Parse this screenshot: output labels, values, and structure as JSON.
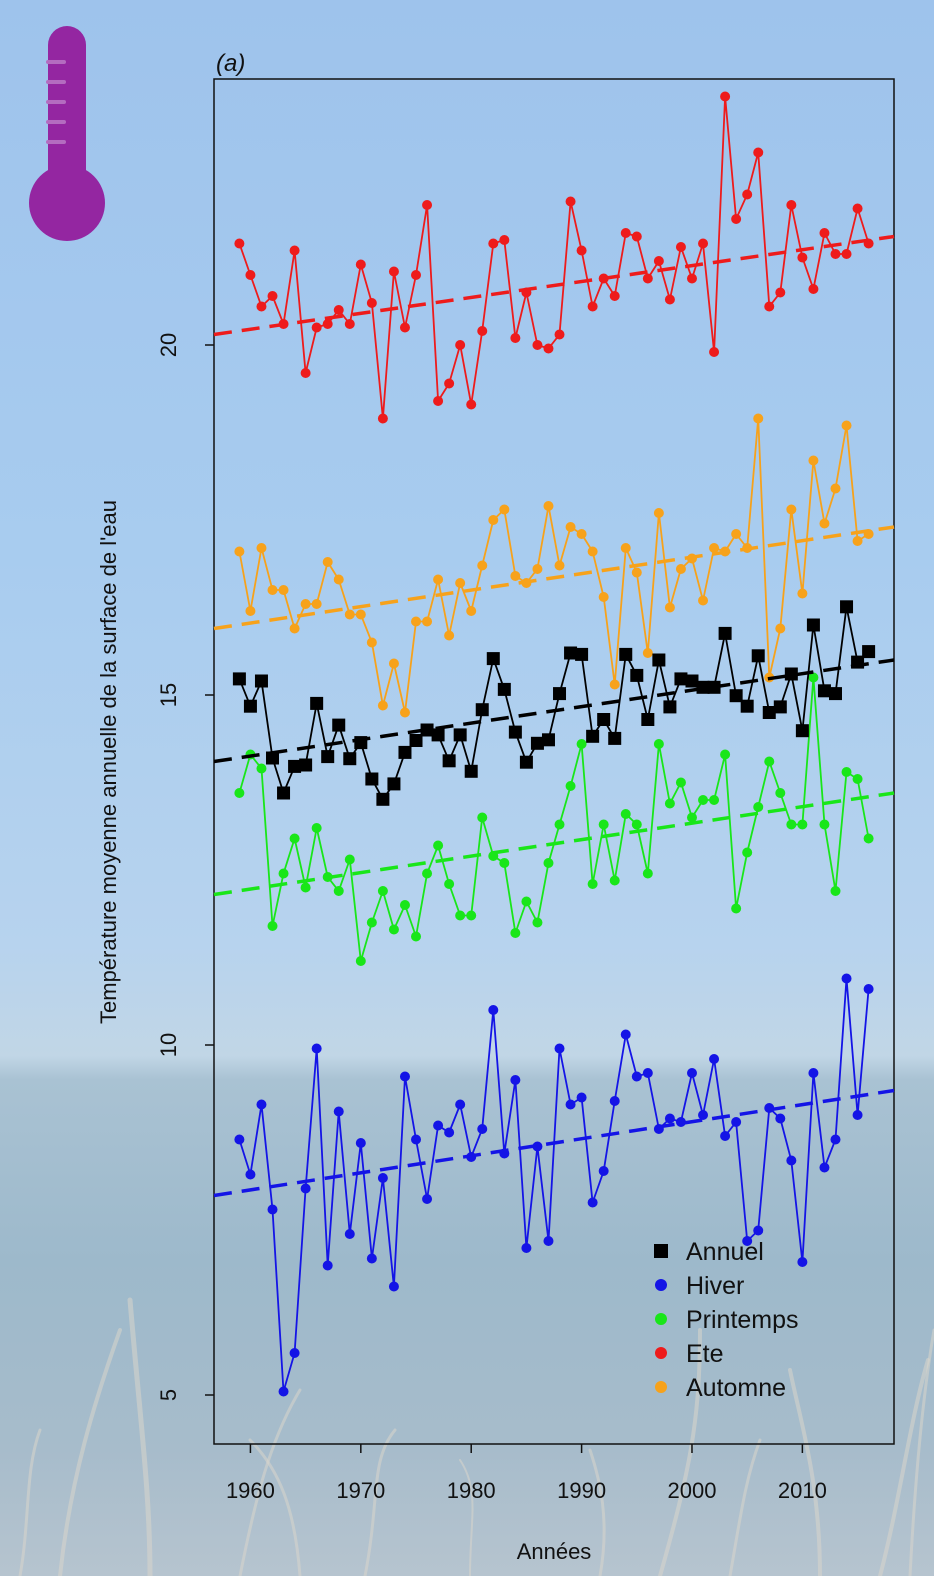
{
  "icon": "thermometer-icon",
  "icon_color": "#9426a1",
  "chart_data": {
    "type": "line",
    "panel_label": "(a)",
    "xlabel": "Années",
    "ylabel": "Température moyenne annuelle de la surface de l'eau",
    "xlim": [
      1956.7,
      2018.3
    ],
    "ylim": [
      4.3,
      23.8
    ],
    "xticks": [
      1960,
      1970,
      1980,
      1990,
      2000,
      2010
    ],
    "yticks": [
      5,
      10,
      15,
      20
    ],
    "legend_position": "bottom-right",
    "x": [
      1959,
      1960,
      1961,
      1962,
      1963,
      1964,
      1965,
      1966,
      1967,
      1968,
      1969,
      1970,
      1971,
      1972,
      1973,
      1974,
      1975,
      1976,
      1977,
      1978,
      1979,
      1980,
      1981,
      1982,
      1983,
      1984,
      1985,
      1986,
      1987,
      1988,
      1989,
      1990,
      1991,
      1992,
      1993,
      1994,
      1995,
      1996,
      1997,
      1998,
      1999,
      2000,
      2001,
      2002,
      2003,
      2004,
      2005,
      2006,
      2007,
      2008,
      2009,
      2010,
      2011,
      2012,
      2013,
      2014,
      2015,
      2016
    ],
    "series": [
      {
        "name": "Annuel",
        "color": "#000000",
        "marker": "square",
        "values": [
          15.23,
          14.84,
          15.2,
          14.1,
          13.6,
          13.98,
          14.0,
          14.88,
          14.12,
          14.57,
          14.09,
          14.32,
          13.8,
          13.51,
          13.73,
          14.18,
          14.35,
          14.5,
          14.43,
          14.06,
          14.43,
          13.91,
          14.79,
          15.52,
          15.08,
          14.47,
          14.04,
          14.31,
          14.36,
          15.02,
          15.6,
          15.58,
          14.41,
          14.65,
          14.38,
          15.58,
          15.28,
          14.65,
          15.5,
          14.83,
          15.23,
          15.2,
          15.11,
          15.11,
          15.88,
          14.99,
          14.84,
          15.56,
          14.75,
          14.83,
          15.3,
          14.49,
          16.0,
          15.06,
          15.02,
          16.26,
          15.47,
          15.62
        ],
        "trend": [
          14.05,
          15.5
        ]
      },
      {
        "name": "Hiver",
        "color": "#1414e6",
        "marker": "circle",
        "values": [
          8.65,
          8.15,
          9.15,
          7.65,
          5.05,
          5.6,
          7.95,
          9.95,
          6.85,
          9.05,
          7.3,
          8.6,
          6.95,
          8.1,
          6.55,
          9.55,
          8.65,
          7.8,
          8.85,
          8.75,
          9.15,
          8.4,
          8.8,
          10.5,
          8.45,
          9.5,
          7.1,
          8.55,
          7.2,
          9.95,
          9.15,
          9.25,
          7.75,
          8.2,
          9.2,
          10.15,
          9.55,
          9.6,
          8.8,
          8.95,
          8.9,
          9.6,
          9.0,
          9.8,
          8.7,
          8.9,
          7.2,
          7.35,
          9.1,
          8.95,
          8.35,
          6.9,
          9.6,
          8.25,
          8.65,
          10.95,
          9.0,
          10.8
        ],
        "trend": [
          7.85,
          9.35
        ]
      },
      {
        "name": "Printemps",
        "color": "#19e619",
        "marker": "circle",
        "values": [
          13.6,
          14.15,
          13.95,
          11.7,
          12.45,
          12.95,
          12.25,
          13.1,
          12.4,
          12.2,
          12.65,
          11.2,
          11.75,
          12.2,
          11.65,
          12.0,
          11.55,
          12.45,
          12.85,
          12.3,
          11.85,
          11.85,
          13.25,
          12.7,
          12.6,
          11.6,
          12.05,
          11.75,
          12.6,
          13.15,
          13.7,
          14.3,
          12.3,
          13.15,
          12.35,
          13.3,
          13.15,
          12.45,
          14.3,
          13.45,
          13.75,
          13.25,
          13.5,
          13.5,
          14.15,
          11.95,
          12.75,
          13.4,
          14.05,
          13.6,
          13.15,
          13.15,
          15.25,
          13.15,
          12.2,
          13.9,
          13.8,
          12.95
        ],
        "trend": [
          12.15,
          13.6
        ]
      },
      {
        "name": "Ete",
        "color": "#ee1b1b",
        "marker": "circle",
        "values": [
          21.45,
          21.0,
          20.55,
          20.7,
          20.3,
          21.35,
          19.6,
          20.25,
          20.3,
          20.5,
          20.3,
          21.15,
          20.6,
          18.95,
          21.05,
          20.25,
          21.0,
          22.0,
          19.2,
          19.45,
          20.0,
          19.15,
          20.2,
          21.45,
          21.5,
          20.1,
          20.75,
          20.0,
          19.95,
          20.15,
          22.05,
          21.35,
          20.55,
          20.95,
          20.7,
          21.6,
          21.55,
          20.95,
          21.2,
          20.65,
          21.4,
          20.95,
          21.45,
          19.9,
          23.55,
          21.8,
          22.15,
          22.75,
          20.55,
          20.75,
          22.0,
          21.25,
          20.8,
          21.6,
          21.3,
          21.3,
          21.95,
          21.45
        ],
        "trend": [
          20.15,
          21.55
        ]
      },
      {
        "name": "Automne",
        "color": "#f7a21b",
        "marker": "circle",
        "values": [
          17.05,
          16.2,
          17.1,
          16.5,
          16.5,
          15.95,
          16.3,
          16.3,
          16.9,
          16.65,
          16.15,
          16.15,
          15.75,
          14.85,
          15.45,
          14.75,
          16.05,
          16.05,
          16.65,
          15.85,
          16.6,
          16.2,
          16.85,
          17.5,
          17.65,
          16.7,
          16.6,
          16.8,
          17.7,
          16.85,
          17.4,
          17.3,
          17.05,
          16.4,
          15.15,
          17.1,
          16.75,
          15.6,
          17.6,
          16.25,
          16.8,
          16.95,
          16.35,
          17.1,
          17.05,
          17.3,
          17.1,
          18.95,
          15.25,
          15.95,
          17.65,
          16.45,
          18.35,
          17.45,
          17.95,
          18.85,
          17.2,
          17.3
        ],
        "trend": [
          15.95,
          17.4
        ]
      }
    ]
  }
}
